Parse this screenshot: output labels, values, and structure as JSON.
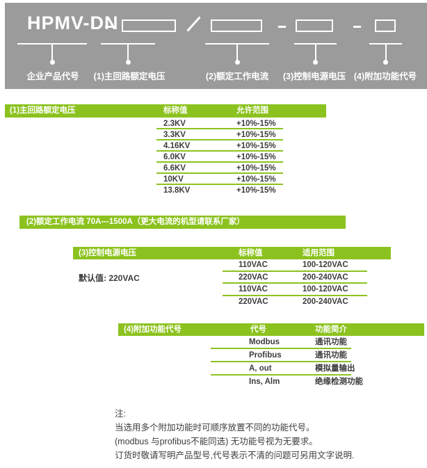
{
  "banner": {
    "product_code": "HPMV-DN",
    "separators": [
      "–",
      "/",
      "–",
      "–"
    ],
    "field_labels": [
      "企业产品代号",
      "(1)主回路额定电压",
      "(2)额定工作电流",
      "(3)控制电源电压",
      "(4)附加功能代号"
    ]
  },
  "voltage_table": {
    "title": "(1)主回路额定电压",
    "columns": [
      "标称值",
      "允许范围"
    ],
    "rows": [
      {
        "value": "2.3KV",
        "range": "+10%-15%"
      },
      {
        "value": "3.3KV",
        "range": "+10%-15%"
      },
      {
        "value": "4.16KV",
        "range": "+10%-15%"
      },
      {
        "value": "6.0KV",
        "range": "+10%-15%"
      },
      {
        "value": "6.6KV",
        "range": "+10%-15%"
      },
      {
        "value": "10KV",
        "range": "+10%-15%"
      },
      {
        "value": "13.8KV",
        "range": "+10%-15%"
      }
    ]
  },
  "current_banner": {
    "text": "(2)额定工作电流 70A---1500A（更大电流的机型请联系厂家）"
  },
  "control_table": {
    "title": "(3)控制电源电压",
    "columns": [
      "标称值",
      "适用范围"
    ],
    "default_note": "默认值: 220VAC",
    "rows": [
      {
        "value": "110VAC",
        "range": "100-120VAC"
      },
      {
        "value": "220VAC",
        "range": "200-240VAC"
      },
      {
        "value": "110VAC",
        "range": "100-120VAC"
      },
      {
        "value": "220VAC",
        "range": "200-240VAC"
      }
    ]
  },
  "function_table": {
    "title": "(4)附加功能代号",
    "columns": [
      "代号",
      "功能简介"
    ],
    "rows": [
      {
        "code": "Modbus",
        "desc": "通讯功能"
      },
      {
        "code": "Profibus",
        "desc": "通讯功能"
      },
      {
        "code": "A, out",
        "desc": "模拟量输出"
      },
      {
        "code": "Ins, Alm",
        "desc": "绝缘检测功能"
      }
    ]
  },
  "notes": {
    "heading": "注:",
    "lines": [
      "当选用多个附加功能时可顺序放置不同的功能代号。",
      "(modbus 与profibus不能同选) 无功能号视为无要求。",
      "订货时敬请写明产品型号,代号表示不清的问题可另用文字说明."
    ]
  },
  "colors": {
    "accent_green": "#8cc21f",
    "banner_gray": "#9b9b9b",
    "text_dark": "#3c3c3c",
    "white": "#ffffff"
  }
}
